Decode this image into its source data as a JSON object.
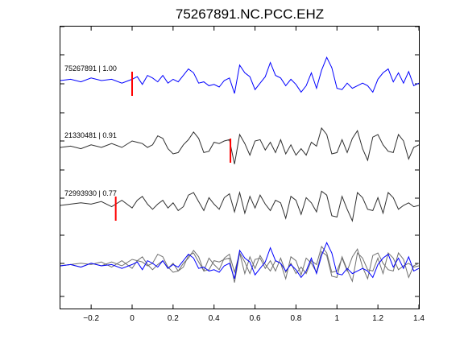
{
  "chart_data": {
    "type": "line",
    "title": "75267891.NC.PCC.EHZ",
    "xlabel": "",
    "ylabel": "",
    "xlim": [
      -0.35,
      1.4
    ],
    "x_ticks": [
      -0.2,
      0,
      0.2,
      0.4,
      0.6,
      0.8,
      1,
      1.2,
      1.4
    ],
    "x_tick_labels": [
      "−0.2",
      "0",
      "0.2",
      "0.4",
      "0.6",
      "0.8",
      "1",
      "1.2",
      "1.4"
    ],
    "grid": false,
    "legend": "none",
    "colors": {
      "reference": "#0000ff",
      "trace": "#303030",
      "pick": "#ff0000"
    },
    "traces": [
      {
        "label": "75267891 | 1.00",
        "pick_time": 0.0,
        "color": "#0000ff",
        "x": [
          -0.35,
          -0.3,
          -0.25,
          -0.2,
          -0.15,
          -0.1,
          -0.05,
          0.0,
          0.025,
          0.05,
          0.075,
          0.1,
          0.125,
          0.15,
          0.175,
          0.2,
          0.225,
          0.25,
          0.275,
          0.3,
          0.325,
          0.35,
          0.375,
          0.4,
          0.425,
          0.45,
          0.475,
          0.5,
          0.525,
          0.55,
          0.575,
          0.6,
          0.625,
          0.65,
          0.675,
          0.7,
          0.725,
          0.75,
          0.775,
          0.8,
          0.825,
          0.85,
          0.875,
          0.9,
          0.925,
          0.95,
          0.975,
          1.0,
          1.025,
          1.05,
          1.075,
          1.1,
          1.125,
          1.15,
          1.175,
          1.2,
          1.225,
          1.25,
          1.275,
          1.3,
          1.325,
          1.35,
          1.375,
          1.4
        ],
        "y": [
          0.0,
          0.05,
          -0.05,
          0.1,
          0.0,
          0.05,
          -0.1,
          0.05,
          0.15,
          -0.15,
          0.2,
          0.1,
          -0.05,
          0.2,
          -0.1,
          0.05,
          -0.05,
          0.2,
          0.45,
          0.3,
          -0.1,
          -0.05,
          -0.2,
          -0.15,
          -0.25,
          0.0,
          0.1,
          -0.5,
          0.6,
          0.3,
          0.15,
          -0.35,
          -0.1,
          0.15,
          0.7,
          0.2,
          0.1,
          -0.2,
          0.05,
          -0.15,
          -0.45,
          -0.2,
          0.3,
          -0.3,
          0.4,
          0.9,
          0.5,
          -0.3,
          -0.35,
          -0.1,
          -0.3,
          -0.2,
          -0.1,
          -0.2,
          -0.45,
          0.05,
          0.3,
          0.45,
          -0.05,
          0.3,
          -0.1,
          0.35,
          -0.2,
          -0.1
        ]
      },
      {
        "label": "21330481 | 0.91",
        "pick_time": 0.48,
        "color": "#303030",
        "x": [
          -0.35,
          -0.3,
          -0.25,
          -0.2,
          -0.15,
          -0.1,
          -0.05,
          0.0,
          0.025,
          0.05,
          0.075,
          0.1,
          0.125,
          0.15,
          0.175,
          0.2,
          0.225,
          0.25,
          0.275,
          0.3,
          0.325,
          0.35,
          0.375,
          0.4,
          0.425,
          0.45,
          0.475,
          0.5,
          0.525,
          0.55,
          0.575,
          0.6,
          0.625,
          0.65,
          0.675,
          0.7,
          0.725,
          0.75,
          0.775,
          0.8,
          0.825,
          0.85,
          0.875,
          0.9,
          0.925,
          0.95,
          0.975,
          1.0,
          1.025,
          1.05,
          1.075,
          1.1,
          1.125,
          1.15,
          1.175,
          1.2,
          1.225,
          1.25,
          1.275,
          1.3,
          1.325,
          1.35,
          1.375,
          1.4
        ],
        "y": [
          0.0,
          0.05,
          -0.05,
          0.1,
          0.0,
          0.15,
          0.0,
          0.25,
          0.2,
          0.15,
          0.0,
          0.1,
          0.45,
          0.35,
          -0.05,
          -0.25,
          -0.2,
          0.1,
          0.3,
          0.6,
          0.35,
          -0.2,
          -0.15,
          0.2,
          0.15,
          0.25,
          0.3,
          -0.65,
          0.5,
          0.15,
          -0.3,
          0.25,
          0.3,
          -0.1,
          0.2,
          -0.2,
          0.3,
          -0.25,
          0.1,
          -0.3,
          -0.05,
          -0.3,
          0.2,
          0.05,
          0.75,
          0.5,
          -0.25,
          -0.2,
          0.3,
          -0.2,
          0.35,
          0.65,
          -0.05,
          -0.5,
          0.4,
          0.5,
          0.1,
          -0.15,
          -0.2,
          0.5,
          0.25,
          -0.45,
          0.0,
          0.1
        ]
      },
      {
        "label": "72993930 | 0.77",
        "pick_time": -0.08,
        "color": "#303030",
        "x": [
          -0.35,
          -0.3,
          -0.25,
          -0.2,
          -0.15,
          -0.1,
          -0.05,
          0.0,
          0.025,
          0.05,
          0.075,
          0.1,
          0.125,
          0.15,
          0.175,
          0.2,
          0.225,
          0.25,
          0.275,
          0.3,
          0.325,
          0.35,
          0.375,
          0.4,
          0.425,
          0.45,
          0.475,
          0.5,
          0.525,
          0.55,
          0.575,
          0.6,
          0.625,
          0.65,
          0.675,
          0.7,
          0.725,
          0.75,
          0.775,
          0.8,
          0.825,
          0.85,
          0.875,
          0.9,
          0.925,
          0.95,
          0.975,
          1.0,
          1.025,
          1.05,
          1.075,
          1.1,
          1.125,
          1.15,
          1.175,
          1.2,
          1.225,
          1.25,
          1.275,
          1.3,
          1.325,
          1.35,
          1.375,
          1.4
        ],
        "y": [
          0.0,
          0.05,
          0.1,
          0.05,
          0.15,
          -0.05,
          0.2,
          -0.1,
          0.2,
          0.35,
          0.05,
          -0.15,
          0.05,
          0.2,
          -0.1,
          0.1,
          -0.2,
          -0.05,
          0.4,
          0.5,
          0.15,
          -0.2,
          0.3,
          0.05,
          -0.15,
          0.3,
          0.45,
          -0.25,
          0.5,
          -0.3,
          0.35,
          -0.1,
          0.4,
          0.05,
          -0.2,
          0.2,
          0.1,
          -0.5,
          0.35,
          0.2,
          -0.35,
          0.3,
          0.1,
          -0.25,
          0.55,
          0.4,
          -0.4,
          -0.45,
          0.35,
          -0.15,
          -0.6,
          0.5,
          0.3,
          -0.15,
          -0.2,
          0.3,
          -0.3,
          0.5,
          0.3,
          -0.15,
          0.0,
          0.1,
          -0.05,
          0.0
        ]
      }
    ],
    "overlay": {
      "description_label": "",
      "series_refs": [
        0,
        1,
        2
      ]
    }
  }
}
